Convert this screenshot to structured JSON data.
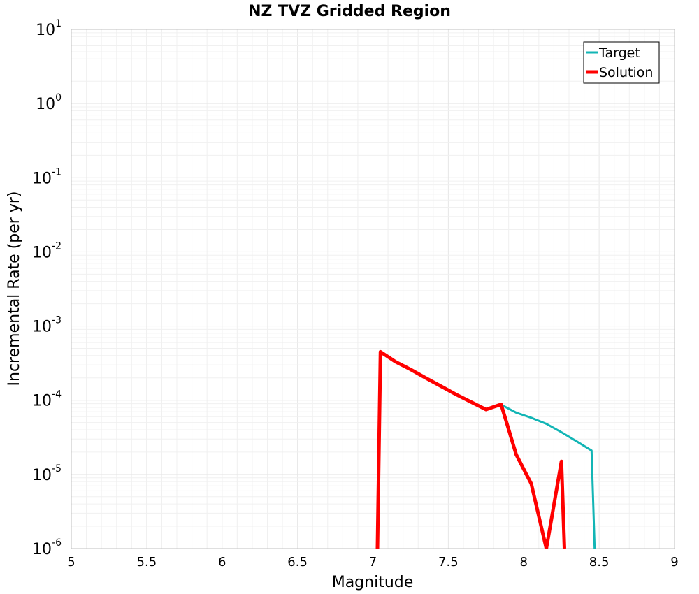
{
  "chart_data": {
    "type": "line",
    "title": "NZ TVZ Gridded Region",
    "xlabel": "Magnitude",
    "ylabel": "Incremental Rate (per yr)",
    "xlim": [
      5,
      9
    ],
    "ylim": [
      1e-06,
      10
    ],
    "yscale": "log",
    "grid": true,
    "legend_position": "top-right",
    "x_ticks": [
      {
        "value": 5,
        "label": "5"
      },
      {
        "value": 5.5,
        "label": "5.5"
      },
      {
        "value": 6,
        "label": "6"
      },
      {
        "value": 6.5,
        "label": "6.5"
      },
      {
        "value": 7,
        "label": "7"
      },
      {
        "value": 7.5,
        "label": "7.5"
      },
      {
        "value": 8,
        "label": "8"
      },
      {
        "value": 8.5,
        "label": "8.5"
      },
      {
        "value": 9,
        "label": "9"
      }
    ],
    "y_ticks": [
      {
        "value": 10,
        "base": "10",
        "exp": "1"
      },
      {
        "value": 1,
        "base": "10",
        "exp": "0"
      },
      {
        "value": 0.1,
        "base": "10",
        "exp": "-1"
      },
      {
        "value": 0.01,
        "base": "10",
        "exp": "-2"
      },
      {
        "value": 0.001,
        "base": "10",
        "exp": "-3"
      },
      {
        "value": 0.0001,
        "base": "10",
        "exp": "-4"
      },
      {
        "value": 1e-05,
        "base": "10",
        "exp": "-5"
      },
      {
        "value": 1e-06,
        "base": "10",
        "exp": "-6"
      }
    ],
    "series": [
      {
        "name": "Target",
        "color": "#12b5b5",
        "x": [
          7.05,
          7.15,
          7.25,
          7.35,
          7.45,
          7.55,
          7.65,
          7.75,
          7.85,
          7.95,
          8.05,
          8.15,
          8.25,
          8.35,
          8.45,
          8.47
        ],
        "y": [
          0.00045,
          0.00033,
          0.00026,
          0.0002,
          0.000155,
          0.00012,
          9.5e-05,
          7.5e-05,
          8.7e-05,
          6.8e-05,
          5.8e-05,
          4.8e-05,
          3.7e-05,
          2.8e-05,
          2.1e-05,
          1e-06
        ]
      },
      {
        "name": "Solution",
        "color": "#ff0000",
        "x": [
          7.03,
          7.05,
          7.15,
          7.25,
          7.35,
          7.45,
          7.55,
          7.65,
          7.75,
          7.85,
          7.95,
          8.05,
          8.15,
          8.25,
          8.27
        ],
        "y": [
          1e-06,
          0.00045,
          0.00033,
          0.00026,
          0.0002,
          0.000155,
          0.00012,
          9.5e-05,
          7.5e-05,
          8.8e-05,
          1.85e-05,
          7.5e-06,
          1e-06,
          1.5e-05,
          1e-06
        ]
      }
    ]
  }
}
